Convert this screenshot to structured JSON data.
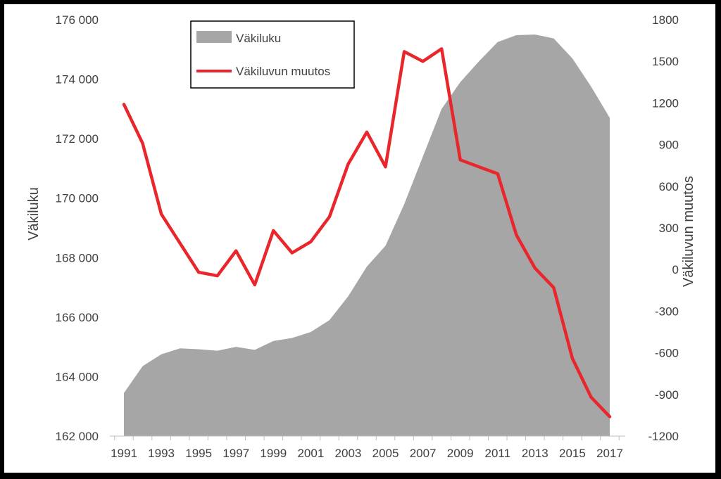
{
  "chart_data": {
    "type": "area+line",
    "title": "",
    "x": [
      1991,
      1992,
      1993,
      1994,
      1995,
      1996,
      1997,
      1998,
      1999,
      2000,
      2001,
      2002,
      2003,
      2004,
      2005,
      2006,
      2007,
      2008,
      2009,
      2010,
      2011,
      2012,
      2013,
      2014,
      2015,
      2016,
      2017
    ],
    "x_ticks": [
      "1991",
      "1993",
      "1995",
      "1997",
      "1999",
      "2001",
      "2003",
      "2005",
      "2007",
      "2009",
      "2011",
      "2013",
      "2015",
      "2017"
    ],
    "y_left": {
      "label": "Väkiluku",
      "range": [
        162000,
        176000
      ],
      "ticks": [
        "162 000",
        "164 000",
        "166 000",
        "168 000",
        "170 000",
        "172 000",
        "174 000",
        "176 000"
      ],
      "tick_values": [
        162000,
        164000,
        166000,
        168000,
        170000,
        172000,
        174000,
        176000
      ]
    },
    "y_right": {
      "label": "Väkiluvun muutos",
      "range": [
        -1200,
        1800
      ],
      "ticks": [
        "-1200",
        "-900",
        "-600",
        "-300",
        "0",
        "300",
        "600",
        "900",
        "1200",
        "1500",
        "1800"
      ],
      "tick_values": [
        -1200,
        -900,
        -600,
        -300,
        0,
        300,
        600,
        900,
        1200,
        1500,
        1800
      ]
    },
    "series": [
      {
        "name": "Väkiluku",
        "kind": "area",
        "axis": "left",
        "color": "#a6a6a6",
        "values": [
          163450,
          164350,
          164750,
          164950,
          164920,
          164870,
          165000,
          164900,
          165200,
          165300,
          165500,
          165900,
          166700,
          167700,
          168400,
          169800,
          171400,
          173000,
          173900,
          174600,
          175250,
          175480,
          175500,
          175370,
          174700,
          173750,
          172700
        ]
      },
      {
        "name": "Väkiluvun muutos",
        "kind": "line",
        "axis": "right",
        "color": "#e8262b",
        "values": [
          1190,
          910,
          400,
          190,
          -20,
          -45,
          135,
          -110,
          280,
          120,
          200,
          380,
          760,
          990,
          740,
          1570,
          1500,
          1590,
          790,
          740,
          690,
          250,
          10,
          -130,
          -640,
          -920,
          -1060
        ]
      }
    ],
    "legend": {
      "position": "top-left",
      "entries": [
        "Väkiluku",
        "Väkiluvun muutos"
      ]
    },
    "grid": false
  }
}
